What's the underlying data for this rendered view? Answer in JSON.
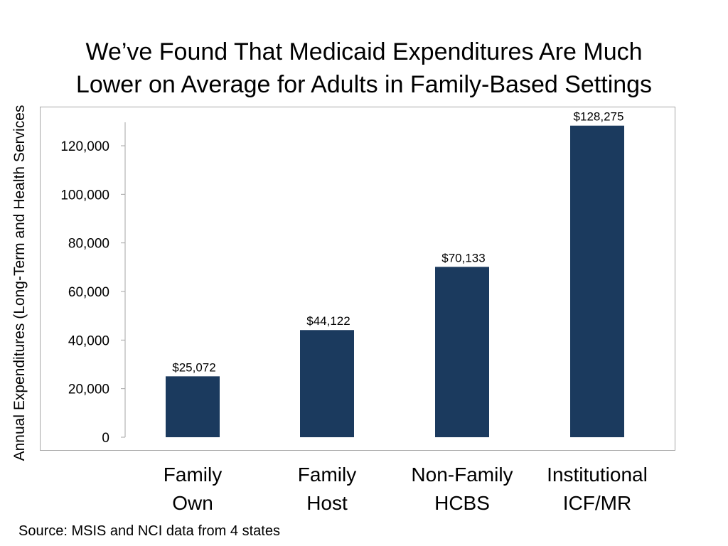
{
  "chart_data": {
    "type": "bar",
    "title_line1": "We’ve Found That Medicaid Expenditures Are Much",
    "title_line2": "Lower on Average for Adults in Family-Based Settings",
    "ylabel": "Annual Expenditures (Long-Term and Health Services",
    "categories": [
      {
        "line1": "Family",
        "line2": "Own"
      },
      {
        "line1": "Family",
        "line2": "Host"
      },
      {
        "line1": "Non-Family",
        "line2": "HCBS"
      },
      {
        "line1": "Institutional",
        "line2": "ICF/MR"
      }
    ],
    "values": [
      25072,
      44122,
      70133,
      128275
    ],
    "data_labels": [
      "$25,072",
      "$44,122",
      "$70,133",
      "$128,275"
    ],
    "yticks": [
      0,
      20000,
      40000,
      60000,
      80000,
      100000,
      120000
    ],
    "ytick_labels": [
      "0",
      "20,000",
      "40,000",
      "60,000",
      "80,000",
      "100,000",
      "120,000"
    ],
    "ylim": [
      0,
      130000
    ],
    "bar_color": "#1b3a5e",
    "grid": false,
    "legend": "none"
  },
  "source": "Source: MSIS and NCI data from 4 states"
}
